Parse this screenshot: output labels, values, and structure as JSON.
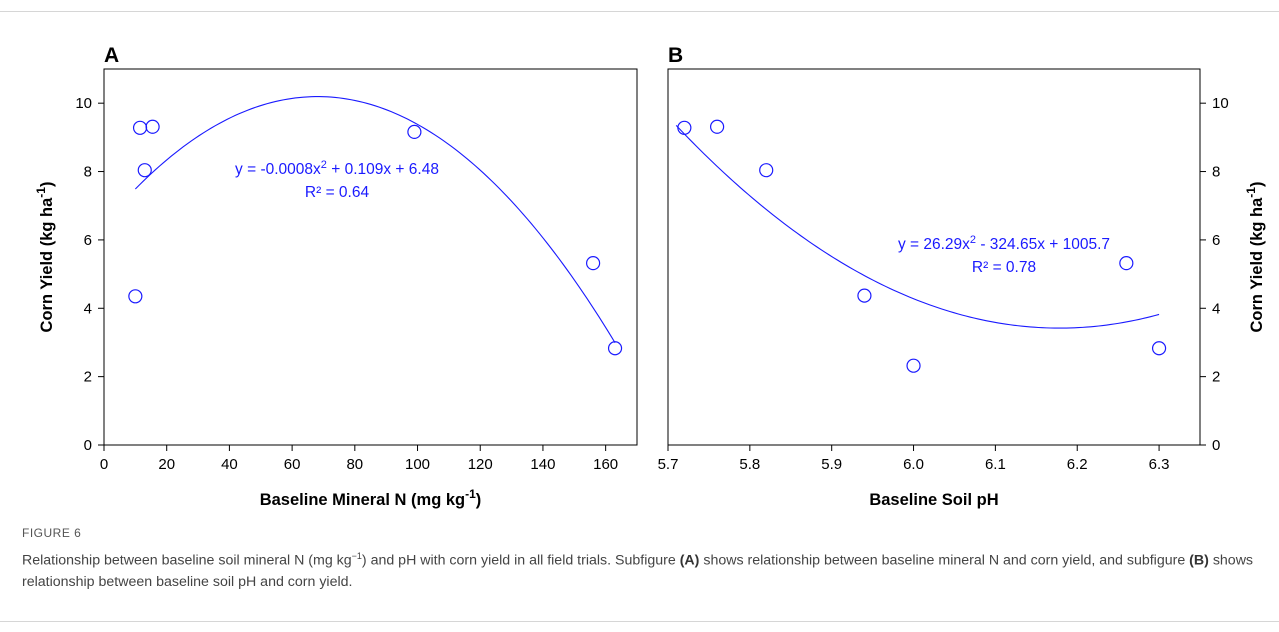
{
  "figure": {
    "label": "FIGURE 6",
    "caption_parts": [
      {
        "text": "Relationship between baseline soil mineral N (mg kg",
        "bold": false
      },
      {
        "text": "−1",
        "bold": false,
        "sup": true
      },
      {
        "text": ") and pH with corn yield in all field trials. Subfigure ",
        "bold": false
      },
      {
        "text": "(A)",
        "bold": true
      },
      {
        "text": " shows relationship between baseline mineral N and corn yield, and subfigure ",
        "bold": false
      },
      {
        "text": "(B)",
        "bold": true
      },
      {
        "text": " shows relationship between baseline soil pH and corn yield.",
        "bold": false
      }
    ]
  },
  "colors": {
    "series": "#1a1aff",
    "axis": "#000000",
    "caption": "#444444"
  },
  "chart_data": [
    {
      "type": "scatter",
      "panel": "A",
      "xlabel": "Baseline Mineral N (mg kg",
      "xlabel_sup": "-1",
      "xlabel_tail": ")",
      "ylabel": "Corn Yield (kg ha",
      "ylabel_sup": "-1",
      "ylabel_tail": ")",
      "xlim": [
        0,
        170
      ],
      "ylim": [
        0,
        11
      ],
      "xticks": [
        0,
        20,
        40,
        60,
        80,
        100,
        120,
        140,
        160
      ],
      "yticks": [
        0,
        2,
        4,
        6,
        8,
        10
      ],
      "points": [
        {
          "x": 10,
          "y": 4.35
        },
        {
          "x": 11.5,
          "y": 9.28
        },
        {
          "x": 13,
          "y": 8.04
        },
        {
          "x": 15.5,
          "y": 9.31
        },
        {
          "x": 99,
          "y": 9.16
        },
        {
          "x": 156,
          "y": 5.32
        },
        {
          "x": 163,
          "y": 2.83
        }
      ],
      "fit": {
        "kind": "quadratic",
        "a": -0.0008,
        "b": 0.109,
        "c": 6.48,
        "x_from": 10,
        "x_to": 163
      },
      "equation": "y = -0.0008x",
      "equation_sup": "2",
      "equation_tail": " + 0.109x + 6.48",
      "r2": "R² = 0.64",
      "grid": false
    },
    {
      "type": "scatter",
      "panel": "B",
      "xlabel": "Baseline Soil pH",
      "ylabel": "Corn Yield (kg ha",
      "ylabel_sup": "-1",
      "ylabel_tail": ")",
      "xlim": [
        5.7,
        6.35
      ],
      "ylim": [
        0,
        11
      ],
      "xticks": [
        "5.7",
        "5.8",
        "5.9",
        "6.0",
        "6.1",
        "6.2",
        "6.3"
      ],
      "yticks": [
        0,
        2,
        4,
        6,
        8,
        10
      ],
      "points": [
        {
          "x": 5.72,
          "y": 9.28
        },
        {
          "x": 5.76,
          "y": 9.31
        },
        {
          "x": 5.82,
          "y": 8.04
        },
        {
          "x": 5.94,
          "y": 4.37
        },
        {
          "x": 6.0,
          "y": 2.32
        },
        {
          "x": 6.26,
          "y": 5.32
        },
        {
          "x": 6.3,
          "y": 2.83
        }
      ],
      "fit": {
        "kind": "quadratic",
        "x_from": 5.71,
        "x_to": 6.3,
        "curve": [
          [
            5.71,
            9.35
          ],
          [
            6.175,
            3.42
          ],
          [
            6.3,
            3.82
          ]
        ]
      },
      "equation": "y = 26.29x",
      "equation_sup": "2",
      "equation_tail": " - 324.65x + 1005.7",
      "r2": "R² = 0.78",
      "grid": false
    }
  ]
}
